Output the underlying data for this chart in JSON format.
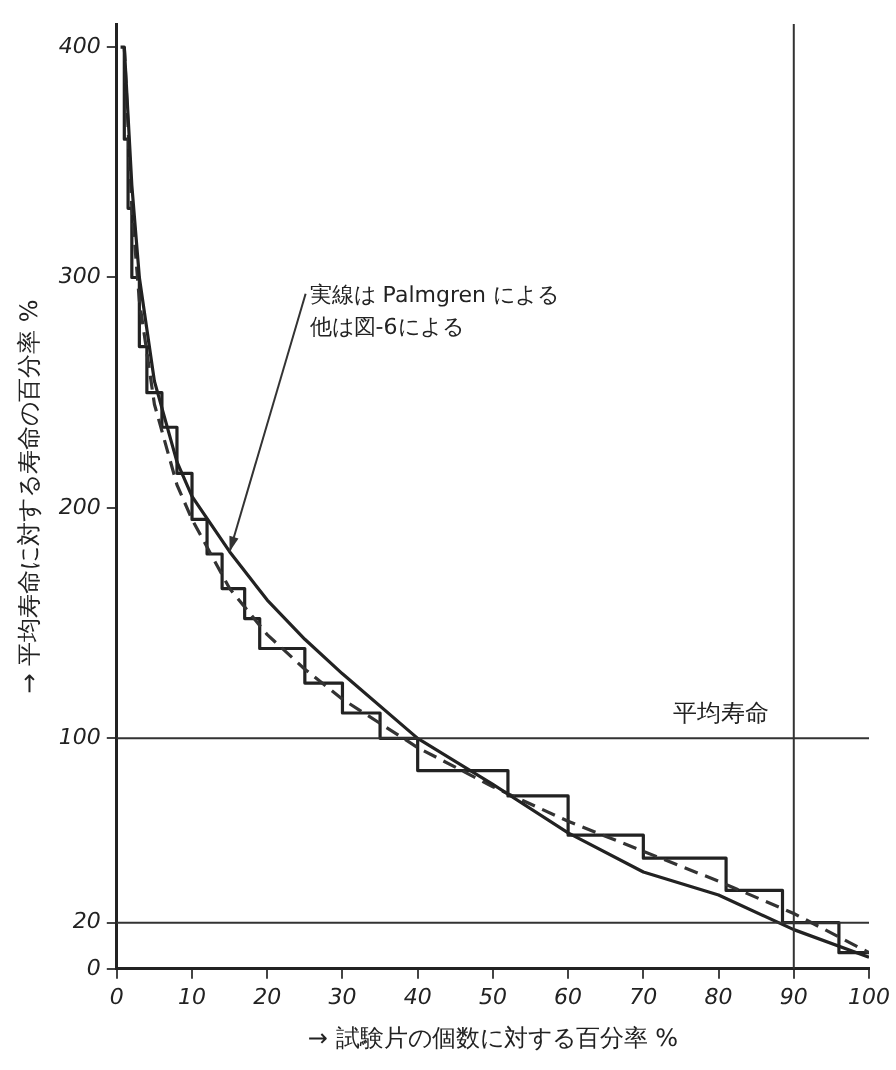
{
  "chart_data": {
    "type": "line",
    "xlabel": "→ 試験片の個数に対する百分率 %",
    "ylabel": "→ 平均寿命に対する寿命の百分率 %",
    "xlim": [
      0,
      100
    ],
    "xticks": [
      0,
      10,
      20,
      30,
      40,
      50,
      60,
      70,
      80,
      90,
      100
    ],
    "ylim": [
      0,
      410
    ],
    "yticks": [
      0,
      20,
      100,
      200,
      300,
      400
    ],
    "grid": false,
    "legend": false,
    "marker": "none",
    "series": [
      {
        "color": "#222222",
        "line_style": "solid",
        "x": [
          1,
          2,
          3,
          5,
          8,
          10,
          15,
          20,
          25,
          30,
          40,
          50,
          60,
          70,
          80,
          90,
          100
        ],
        "values": [
          400,
          340,
          300,
          255,
          220,
          205,
          181,
          160,
          143,
          128,
          100,
          80,
          59,
          42,
          32,
          17,
          5
        ]
      },
      {
        "color": "#333333",
        "line_style": "dashed",
        "x": [
          1,
          2,
          3,
          5,
          8,
          10,
          15,
          20,
          25,
          30,
          40,
          50,
          60,
          70,
          80,
          90,
          100
        ],
        "values": [
          400,
          330,
          290,
          245,
          210,
          195,
          165,
          145,
          130,
          117,
          96,
          79,
          64,
          51,
          38,
          24,
          7
        ]
      },
      {
        "type": "step",
        "color": "#222222",
        "line_style": "solid",
        "x": [
          0.5,
          1,
          1.5,
          2,
          3,
          4,
          6,
          8,
          10,
          12,
          14,
          17,
          19,
          25,
          30,
          35,
          40,
          52,
          60,
          70,
          81,
          88.5,
          96,
          100
        ],
        "values": [
          400,
          360,
          330,
          300,
          270,
          250,
          235,
          215,
          195,
          180,
          165,
          152,
          139,
          124,
          111,
          100,
          86,
          75,
          58,
          48,
          34,
          20,
          7,
          7
        ]
      }
    ],
    "ref_lines": [
      {
        "axis": "y",
        "value": 100,
        "label": "平均寿命"
      },
      {
        "axis": "y",
        "value": 20
      },
      {
        "axis": "x",
        "value": 90
      }
    ],
    "annotations": [
      {
        "text": "実線は Palmgren による",
        "x": 15,
        "y": 181
      },
      "他は図-6による"
    ]
  }
}
